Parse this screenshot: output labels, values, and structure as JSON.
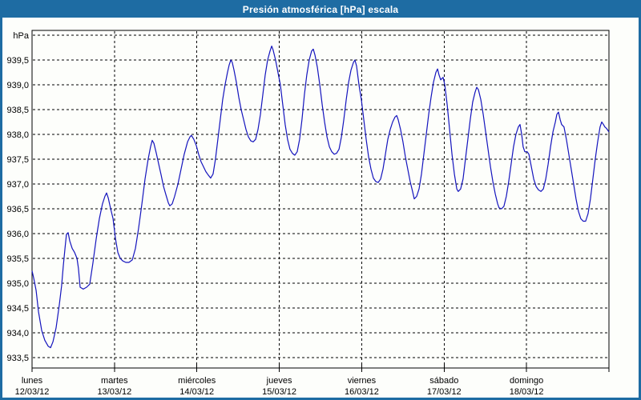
{
  "window": {
    "title": "Presión atmosférica [hPa] escala"
  },
  "colors": {
    "frame": "#1e6ca3",
    "titlebar": "#1e6ca3",
    "title_text": "#ffffff",
    "plot_background": "#fdfefb",
    "grid": "#000000",
    "series_line": "#1414bd",
    "labels": "#000000"
  },
  "chart_data": {
    "type": "line",
    "title": "Presión atmosférica [hPa] escala",
    "ylabel": "hPa",
    "y_top_label": "hPa",
    "ylim": [
      933.3,
      940.1
    ],
    "grid": "dashed",
    "legend_position": "none",
    "y_gridlines": [
      {
        "value": 940.0,
        "label": ""
      },
      {
        "value": 939.5,
        "label": "939,5"
      },
      {
        "value": 939.0,
        "label": "939,0"
      },
      {
        "value": 938.5,
        "label": "938,5"
      },
      {
        "value": 938.0,
        "label": "938,0"
      },
      {
        "value": 937.5,
        "label": "937,5"
      },
      {
        "value": 937.0,
        "label": "937,0"
      },
      {
        "value": 936.5,
        "label": "936,5"
      },
      {
        "value": 936.0,
        "label": "936,0"
      },
      {
        "value": 935.5,
        "label": "935,5"
      },
      {
        "value": 935.0,
        "label": "935,0"
      },
      {
        "value": 934.5,
        "label": "934,5"
      },
      {
        "value": 934.0,
        "label": "934,0"
      },
      {
        "value": 933.5,
        "label": "933,5"
      }
    ],
    "x_range_hours": [
      0,
      168
    ],
    "x_days": [
      {
        "name": "lunes",
        "date": "12/03/12"
      },
      {
        "name": "martes",
        "date": "13/03/12"
      },
      {
        "name": "miércoles",
        "date": "14/03/12"
      },
      {
        "name": "jueves",
        "date": "15/03/12"
      },
      {
        "name": "viernes",
        "date": "16/03/12"
      },
      {
        "name": "sábado",
        "date": "17/03/12"
      },
      {
        "name": "domingo",
        "date": "18/03/12"
      }
    ],
    "series": [
      {
        "name": "Presión atmosférica [hPa]",
        "unit": "hPa",
        "points": [
          [
            0,
            935.25
          ],
          [
            0.5,
            935.1
          ],
          [
            1.2,
            934.85
          ],
          [
            1.9,
            934.42
          ],
          [
            2.8,
            934.05
          ],
          [
            3.7,
            933.85
          ],
          [
            4.7,
            933.73
          ],
          [
            5.4,
            933.7
          ],
          [
            6.1,
            933.82
          ],
          [
            7,
            934.1
          ],
          [
            7.9,
            934.55
          ],
          [
            8.6,
            934.95
          ],
          [
            9.1,
            935.35
          ],
          [
            9.6,
            935.7
          ],
          [
            10,
            935.98
          ],
          [
            10.5,
            936.02
          ],
          [
            11,
            935.85
          ],
          [
            11.7,
            935.7
          ],
          [
            12.4,
            935.62
          ],
          [
            13.1,
            935.5
          ],
          [
            13.5,
            935.3
          ],
          [
            14,
            934.92
          ],
          [
            14.9,
            934.88
          ],
          [
            15.9,
            934.92
          ],
          [
            16.8,
            934.98
          ],
          [
            17.7,
            935.4
          ],
          [
            18.7,
            935.9
          ],
          [
            19.6,
            936.3
          ],
          [
            20.5,
            936.6
          ],
          [
            21.2,
            936.75
          ],
          [
            21.7,
            936.82
          ],
          [
            22.2,
            936.72
          ],
          [
            22.9,
            936.5
          ],
          [
            23.6,
            936.3
          ],
          [
            24.3,
            935.9
          ],
          [
            25,
            935.62
          ],
          [
            25.7,
            935.5
          ],
          [
            26.4,
            935.45
          ],
          [
            27.3,
            935.42
          ],
          [
            28.2,
            935.42
          ],
          [
            29.2,
            935.47
          ],
          [
            30.1,
            935.7
          ],
          [
            31,
            936.1
          ],
          [
            32,
            936.6
          ],
          [
            32.9,
            937.1
          ],
          [
            33.8,
            937.5
          ],
          [
            34.5,
            937.75
          ],
          [
            35,
            937.88
          ],
          [
            35.5,
            937.82
          ],
          [
            36.2,
            937.62
          ],
          [
            36.9,
            937.4
          ],
          [
            37.6,
            937.18
          ],
          [
            38.3,
            936.95
          ],
          [
            39,
            936.78
          ],
          [
            39.7,
            936.62
          ],
          [
            40.1,
            936.56
          ],
          [
            40.8,
            936.6
          ],
          [
            41.5,
            936.75
          ],
          [
            42.5,
            937
          ],
          [
            43.4,
            937.3
          ],
          [
            44.3,
            937.6
          ],
          [
            45.3,
            937.85
          ],
          [
            46,
            937.95
          ],
          [
            46.4,
            937.98
          ],
          [
            47.1,
            937.9
          ],
          [
            47.8,
            937.78
          ],
          [
            48.5,
            937.6
          ],
          [
            49.2,
            937.45
          ],
          [
            49.9,
            937.35
          ],
          [
            50.6,
            937.25
          ],
          [
            51.3,
            937.18
          ],
          [
            52,
            937.12
          ],
          [
            52.7,
            937.2
          ],
          [
            53.4,
            937.5
          ],
          [
            54.1,
            937.9
          ],
          [
            54.8,
            938.3
          ],
          [
            55.5,
            938.7
          ],
          [
            56.2,
            939
          ],
          [
            56.9,
            939.25
          ],
          [
            57.4,
            939.4
          ],
          [
            57.9,
            939.5
          ],
          [
            58.3,
            939.45
          ],
          [
            58.8,
            939.3
          ],
          [
            59.5,
            939.05
          ],
          [
            60.2,
            938.75
          ],
          [
            60.9,
            938.5
          ],
          [
            61.6,
            938.3
          ],
          [
            62.3,
            938.1
          ],
          [
            63,
            937.95
          ],
          [
            63.7,
            937.87
          ],
          [
            64.4,
            937.85
          ],
          [
            65.1,
            937.9
          ],
          [
            65.8,
            938.1
          ],
          [
            66.5,
            938.4
          ],
          [
            67.2,
            938.8
          ],
          [
            67.9,
            939.2
          ],
          [
            68.6,
            939.5
          ],
          [
            69.3,
            939.68
          ],
          [
            69.8,
            939.78
          ],
          [
            70.2,
            939.7
          ],
          [
            70.9,
            939.5
          ],
          [
            71.6,
            939.25
          ],
          [
            72.3,
            939
          ],
          [
            73,
            938.6
          ],
          [
            73.7,
            938.2
          ],
          [
            74.4,
            937.9
          ],
          [
            75.1,
            937.7
          ],
          [
            75.8,
            937.62
          ],
          [
            76.5,
            937.58
          ],
          [
            77.2,
            937.65
          ],
          [
            77.9,
            937.9
          ],
          [
            78.6,
            938.3
          ],
          [
            79.3,
            938.8
          ],
          [
            80,
            939.2
          ],
          [
            80.7,
            939.5
          ],
          [
            81.4,
            939.68
          ],
          [
            81.9,
            939.72
          ],
          [
            82.4,
            939.6
          ],
          [
            83.1,
            939.35
          ],
          [
            83.8,
            939
          ],
          [
            84.5,
            938.6
          ],
          [
            85.2,
            938.25
          ],
          [
            85.9,
            937.95
          ],
          [
            86.6,
            937.75
          ],
          [
            87.3,
            937.65
          ],
          [
            88,
            937.6
          ],
          [
            88.7,
            937.62
          ],
          [
            89.4,
            937.7
          ],
          [
            90.1,
            937.95
          ],
          [
            90.8,
            938.3
          ],
          [
            91.5,
            938.7
          ],
          [
            92.2,
            939.05
          ],
          [
            92.9,
            939.3
          ],
          [
            93.6,
            939.45
          ],
          [
            94,
            939.5
          ],
          [
            94.5,
            939.38
          ],
          [
            95.2,
            939
          ],
          [
            95.9,
            938.7
          ],
          [
            96.6,
            938.3
          ],
          [
            97.3,
            937.9
          ],
          [
            98,
            937.55
          ],
          [
            98.7,
            937.3
          ],
          [
            99.4,
            937.12
          ],
          [
            100.1,
            937.05
          ],
          [
            100.8,
            937.03
          ],
          [
            101.5,
            937.1
          ],
          [
            102.2,
            937.3
          ],
          [
            102.9,
            937.6
          ],
          [
            103.6,
            937.9
          ],
          [
            104.3,
            938.1
          ],
          [
            105,
            938.25
          ],
          [
            105.7,
            938.35
          ],
          [
            106.2,
            938.38
          ],
          [
            106.6,
            938.3
          ],
          [
            107.3,
            938.1
          ],
          [
            108,
            937.85
          ],
          [
            108.7,
            937.55
          ],
          [
            109.4,
            937.3
          ],
          [
            110.1,
            937.05
          ],
          [
            110.8,
            936.85
          ],
          [
            111.3,
            936.7
          ],
          [
            112,
            936.75
          ],
          [
            112.7,
            936.9
          ],
          [
            113.4,
            937.2
          ],
          [
            114.1,
            937.6
          ],
          [
            114.8,
            938
          ],
          [
            115.5,
            938.4
          ],
          [
            116.2,
            938.75
          ],
          [
            116.9,
            939.05
          ],
          [
            117.6,
            939.25
          ],
          [
            118.1,
            939.32
          ],
          [
            118.5,
            939.2
          ],
          [
            119,
            939.1
          ],
          [
            119.7,
            939.15
          ],
          [
            120.2,
            939
          ],
          [
            120.9,
            938.6
          ],
          [
            121.6,
            938.1
          ],
          [
            122.3,
            937.6
          ],
          [
            123,
            937.2
          ],
          [
            123.7,
            936.9
          ],
          [
            124.1,
            936.85
          ],
          [
            124.8,
            936.9
          ],
          [
            125.5,
            937.1
          ],
          [
            126.2,
            937.5
          ],
          [
            126.9,
            937.9
          ],
          [
            127.6,
            938.3
          ],
          [
            128.3,
            938.65
          ],
          [
            129,
            938.85
          ],
          [
            129.5,
            938.95
          ],
          [
            130,
            938.9
          ],
          [
            130.7,
            938.7
          ],
          [
            131.4,
            938.4
          ],
          [
            132.1,
            938.05
          ],
          [
            132.8,
            937.7
          ],
          [
            133.5,
            937.35
          ],
          [
            134.2,
            937.05
          ],
          [
            134.9,
            936.8
          ],
          [
            135.6,
            936.6
          ],
          [
            136,
            936.52
          ],
          [
            136.7,
            936.5
          ],
          [
            137.4,
            936.55
          ],
          [
            138.1,
            936.75
          ],
          [
            138.8,
            937.05
          ],
          [
            139.5,
            937.4
          ],
          [
            140.2,
            937.75
          ],
          [
            140.9,
            938
          ],
          [
            141.6,
            938.15
          ],
          [
            142.1,
            938.2
          ],
          [
            142.6,
            938
          ],
          [
            143,
            937.75
          ],
          [
            143.5,
            937.65
          ],
          [
            144.2,
            937.65
          ],
          [
            144.7,
            937.6
          ],
          [
            145.4,
            937.35
          ],
          [
            146.1,
            937.1
          ],
          [
            146.8,
            936.95
          ],
          [
            147.5,
            936.88
          ],
          [
            148.2,
            936.85
          ],
          [
            148.9,
            936.9
          ],
          [
            149.6,
            937.1
          ],
          [
            150.3,
            937.4
          ],
          [
            151,
            937.75
          ],
          [
            151.7,
            938.05
          ],
          [
            152.4,
            938.25
          ],
          [
            152.8,
            938.4
          ],
          [
            153.3,
            938.45
          ],
          [
            153.8,
            938.3
          ],
          [
            154.2,
            938.2
          ],
          [
            154.9,
            938.15
          ],
          [
            155.6,
            937.9
          ],
          [
            156.3,
            937.6
          ],
          [
            157,
            937.3
          ],
          [
            157.7,
            937
          ],
          [
            158.4,
            936.7
          ],
          [
            159.1,
            936.45
          ],
          [
            159.8,
            936.3
          ],
          [
            160.5,
            936.25
          ],
          [
            161.2,
            936.25
          ],
          [
            161.9,
            936.4
          ],
          [
            162.6,
            936.7
          ],
          [
            163.3,
            937.1
          ],
          [
            164,
            937.5
          ],
          [
            164.7,
            937.85
          ],
          [
            165.4,
            938.15
          ],
          [
            165.9,
            938.25
          ],
          [
            166.4,
            938.2
          ],
          [
            166.8,
            938.15
          ],
          [
            167.3,
            938.12
          ],
          [
            168,
            938.05
          ]
        ]
      }
    ]
  }
}
